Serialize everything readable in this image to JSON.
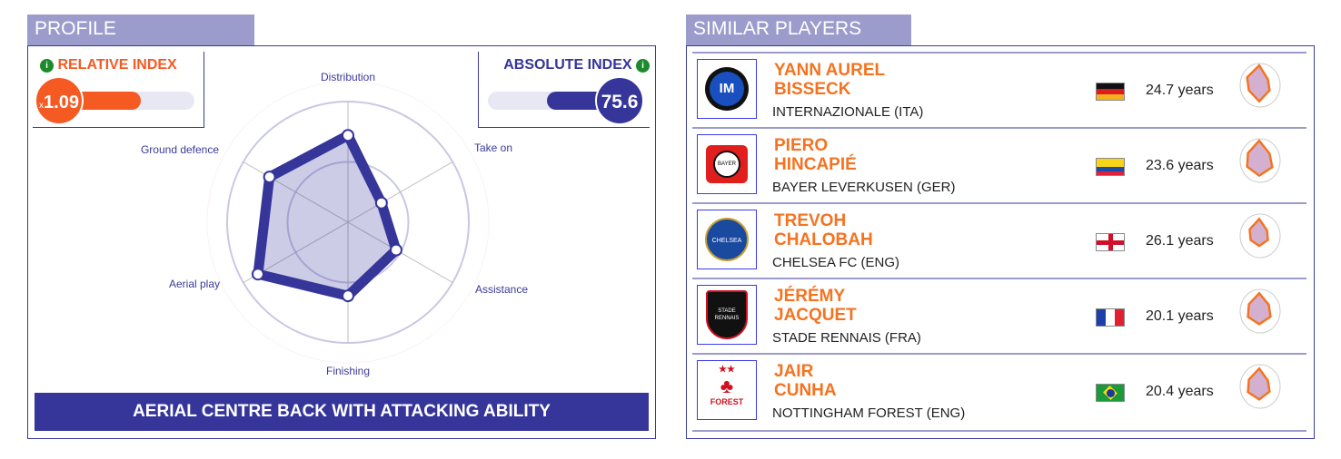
{
  "profile": {
    "tab": "PROFILE",
    "relative": {
      "title": "RELATIVE INDEX",
      "prefix": "x",
      "value": "1.09",
      "fill": 0.6,
      "color": "#f55a23"
    },
    "absolute": {
      "title": "ABSOLUTE INDEX",
      "value": "75.6",
      "fill": 0.756,
      "color": "#35359a"
    },
    "info_icon": "i",
    "banner": "AERIAL CENTRE BACK WITH ATTACKING ABILITY"
  },
  "chart_data": {
    "type": "radar",
    "axes": [
      "Distribution",
      "Take on",
      "Assistance",
      "Finishing",
      "Aerial play",
      "Ground defence"
    ],
    "values": [
      72,
      32,
      46,
      61,
      86,
      75
    ],
    "range": [
      0,
      100
    ],
    "color": "#35359a"
  },
  "similar": {
    "tab": "SIMILAR PLAYERS",
    "players": [
      {
        "first": "YANN AUREL",
        "last": "BISSECK",
        "club": "INTERNAZIONALE (ITA)",
        "age": "24.7 years",
        "flag": "germany",
        "logo": "inter"
      },
      {
        "first": "PIERO",
        "last": "HINCAPIÉ",
        "club": "BAYER LEVERKUSEN (GER)",
        "age": "23.6 years",
        "flag": "ecuador",
        "logo": "leverkusen"
      },
      {
        "first": "TREVOH",
        "last": "CHALOBAH",
        "club": "CHELSEA FC (ENG)",
        "age": "26.1 years",
        "flag": "england",
        "logo": "chelsea"
      },
      {
        "first": "JÉRÉMY",
        "last": "JACQUET",
        "club": "STADE RENNAIS (FRA)",
        "age": "20.1 years",
        "flag": "france",
        "logo": "rennes"
      },
      {
        "first": "JAIR",
        "last": "CUNHA",
        "club": "NOTTINGHAM FOREST (ENG)",
        "age": "20.4 years",
        "flag": "brazil",
        "logo": "forest"
      }
    ],
    "accent": "#f57320"
  }
}
